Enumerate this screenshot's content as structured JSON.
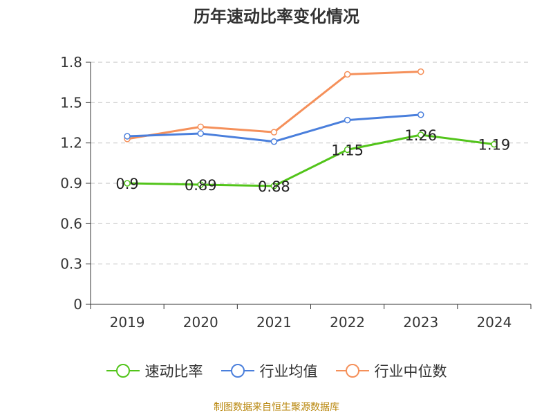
{
  "title": "历年速动比率变化情况",
  "source": "制图数据来自恒生聚源数据库",
  "chart_data": {
    "type": "line",
    "title": "历年速动比率变化情况",
    "categories": [
      "2019",
      "2020",
      "2021",
      "2022",
      "2023",
      "2024"
    ],
    "ylim": [
      0,
      1.8
    ],
    "yticks": [
      "0",
      "0.3",
      "0.6",
      "0.9",
      "1.2",
      "1.5",
      "1.8"
    ],
    "grid": true,
    "legend_position": "bottom",
    "series": [
      {
        "name": "速动比率",
        "color": "#52c41a",
        "values": [
          0.9,
          0.89,
          0.88,
          1.15,
          1.26,
          1.19
        ],
        "labels": [
          "0.9",
          "0.89",
          "0.88",
          "1.15",
          "1.26",
          "1.19"
        ]
      },
      {
        "name": "行业均值",
        "color": "#4a7fdc",
        "values": [
          1.25,
          1.27,
          1.21,
          1.37,
          1.41,
          null
        ]
      },
      {
        "name": "行业中位数",
        "color": "#f5905a",
        "values": [
          1.23,
          1.32,
          1.28,
          1.71,
          1.73,
          null
        ]
      }
    ]
  }
}
